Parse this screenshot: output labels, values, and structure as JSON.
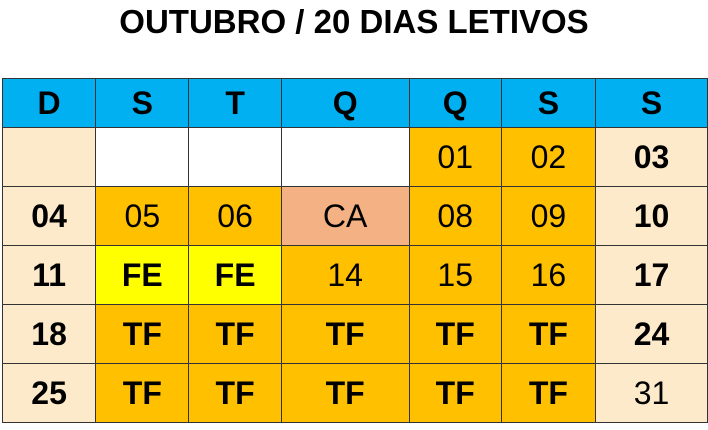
{
  "header": {
    "title": "OUTUBRO / 20 DIAS LETIVOS"
  },
  "table": {
    "columns": [
      {
        "label": "D",
        "width": 93
      },
      {
        "label": "S",
        "width": 93
      },
      {
        "label": "T",
        "width": 92
      },
      {
        "label": "Q",
        "width": 128
      },
      {
        "label": "Q",
        "width": 92
      },
      {
        "label": "S",
        "width": 94
      },
      {
        "label": "S",
        "width": 112
      }
    ],
    "header_color": "#00b0f0",
    "rows": [
      [
        {
          "color": "#fdeacb"
        },
        {
          "color": "#ffffff"
        },
        {
          "color": "#ffffff"
        },
        {
          "color": "#ffffff"
        },
        {
          "text": "01",
          "color": "#ffc000"
        },
        {
          "text": "02",
          "color": "#ffc000"
        },
        {
          "text": "03",
          "color": "#fdeacb",
          "bold": true
        }
      ],
      [
        {
          "text": "04",
          "color": "#fdeacb",
          "bold": true
        },
        {
          "text": "05",
          "color": "#ffc000"
        },
        {
          "text": "06",
          "color": "#ffc000"
        },
        {
          "text": "CA",
          "color": "#f4b183"
        },
        {
          "text": "08",
          "color": "#ffc000"
        },
        {
          "text": "09",
          "color": "#ffc000"
        },
        {
          "text": "10",
          "color": "#fdeacb",
          "bold": true
        }
      ],
      [
        {
          "text": "11",
          "color": "#fdeacb",
          "bold": true
        },
        {
          "text": "FE",
          "color": "#ffff00",
          "bold": true
        },
        {
          "text": "FE",
          "color": "#ffff00",
          "bold": true
        },
        {
          "text": "14",
          "color": "#ffc000"
        },
        {
          "text": "15",
          "color": "#ffc000"
        },
        {
          "text": "16",
          "color": "#ffc000"
        },
        {
          "text": "17",
          "color": "#fdeacb",
          "bold": true
        }
      ],
      [
        {
          "text": "18",
          "color": "#fdeacb",
          "bold": true
        },
        {
          "text": "TF",
          "color": "#ffc000",
          "bold": true
        },
        {
          "text": "TF",
          "color": "#ffc000",
          "bold": true
        },
        {
          "text": "TF",
          "color": "#ffc000",
          "bold": true
        },
        {
          "text": "TF",
          "color": "#ffc000",
          "bold": true
        },
        {
          "text": "TF",
          "color": "#ffc000",
          "bold": true
        },
        {
          "text": "24",
          "color": "#fdeacb",
          "bold": true
        }
      ],
      [
        {
          "text": "25",
          "color": "#fdeacb",
          "bold": true
        },
        {
          "text": "TF",
          "color": "#ffc000",
          "bold": true
        },
        {
          "text": "TF",
          "color": "#ffc000",
          "bold": true
        },
        {
          "text": "TF",
          "color": "#ffc000",
          "bold": true
        },
        {
          "text": "TF",
          "color": "#ffc000",
          "bold": true
        },
        {
          "text": "TF",
          "color": "#ffc000",
          "bold": true
        },
        {
          "text": "31",
          "color": "#fdeacb"
        }
      ]
    ]
  }
}
